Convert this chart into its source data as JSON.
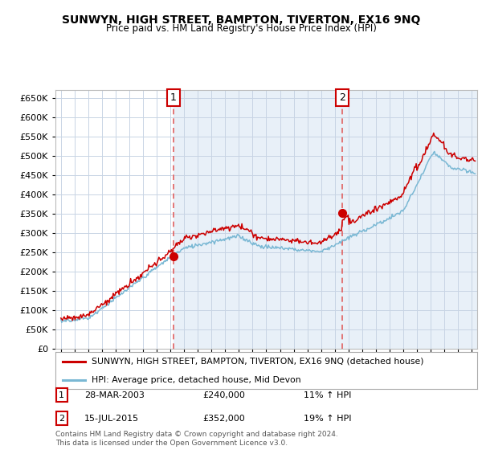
{
  "title": "SUNWYN, HIGH STREET, BAMPTON, TIVERTON, EX16 9NQ",
  "subtitle": "Price paid vs. HM Land Registry's House Price Index (HPI)",
  "legend_line1": "SUNWYN, HIGH STREET, BAMPTON, TIVERTON, EX16 9NQ (detached house)",
  "legend_line2": "HPI: Average price, detached house, Mid Devon",
  "table_row1": [
    "1",
    "28-MAR-2003",
    "£240,000",
    "11% ↑ HPI"
  ],
  "table_row2": [
    "2",
    "15-JUL-2015",
    "£352,000",
    "19% ↑ HPI"
  ],
  "footnote": "Contains HM Land Registry data © Crown copyright and database right 2024.\nThis data is licensed under the Open Government Licence v3.0.",
  "hpi_color": "#7ab8d4",
  "price_color": "#cc0000",
  "vline_color": "#e06060",
  "grid_color": "#c8d4e4",
  "bg_shade_color": "#e8f0f8",
  "background_color": "#ffffff",
  "ylim": [
    0,
    670000
  ],
  "yticks": [
    0,
    50000,
    100000,
    150000,
    200000,
    250000,
    300000,
    350000,
    400000,
    450000,
    500000,
    550000,
    600000,
    650000
  ],
  "transaction1_year": 2003.23,
  "transaction1_price": 240000,
  "transaction2_year": 2015.54,
  "transaction2_price": 352000,
  "xlim_left": 1994.6,
  "xlim_right": 2025.4
}
